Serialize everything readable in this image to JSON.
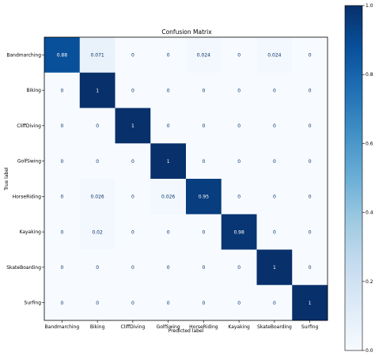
{
  "chart_data": {
    "type": "heatmap",
    "title": "Confusion Matrix",
    "xlabel": "Predicted label",
    "ylabel": "True label",
    "x_categories": [
      "Bandmarching",
      "Biking",
      "CliffDiving",
      "GolfSwing",
      "HorseRiding",
      "Kayaking",
      "SkateBoarding",
      "Surfing"
    ],
    "y_categories": [
      "Bandmarching",
      "Biking",
      "CliffDiving",
      "GolfSwing",
      "HorseRiding",
      "Kayaking",
      "SkateBoarding",
      "Surfing"
    ],
    "values": [
      [
        0.88,
        0.071,
        0,
        0,
        0.024,
        0,
        0.024,
        0
      ],
      [
        0,
        1,
        0,
        0,
        0,
        0,
        0,
        0
      ],
      [
        0,
        0,
        1,
        0,
        0,
        0,
        0,
        0
      ],
      [
        0,
        0,
        0,
        1,
        0,
        0,
        0,
        0
      ],
      [
        0,
        0.026,
        0,
        0.026,
        0.95,
        0,
        0,
        0
      ],
      [
        0,
        0.02,
        0,
        0,
        0,
        0.98,
        0,
        0
      ],
      [
        0,
        0,
        0,
        0,
        0,
        0,
        1,
        0
      ],
      [
        0,
        0,
        0,
        0,
        0,
        0,
        0,
        1
      ]
    ],
    "cell_labels": [
      [
        "0.88",
        "0.071",
        "0",
        "0",
        "0.024",
        "0",
        "0.024",
        "0"
      ],
      [
        "0",
        "1",
        "0",
        "0",
        "0",
        "0",
        "0",
        "0"
      ],
      [
        "0",
        "0",
        "1",
        "0",
        "0",
        "0",
        "0",
        "0"
      ],
      [
        "0",
        "0",
        "0",
        "1",
        "0",
        "0",
        "0",
        "0"
      ],
      [
        "0",
        "0.026",
        "0",
        "0.026",
        "0.95",
        "0",
        "0",
        "0"
      ],
      [
        "0",
        "0.02",
        "0",
        "0",
        "0",
        "0.98",
        "0",
        "0"
      ],
      [
        "0",
        "0",
        "0",
        "0",
        "0",
        "0",
        "1",
        "0"
      ],
      [
        "0",
        "0",
        "0",
        "0",
        "0",
        "0",
        "0",
        "1"
      ]
    ],
    "colorbar": {
      "range": [
        0,
        1
      ],
      "ticks": [
        "0.0",
        "0.2",
        "0.4",
        "0.6",
        "0.8",
        "1.0"
      ],
      "colormap": [
        "#f7fbff",
        "#deebf7",
        "#c6dbef",
        "#9ecae1",
        "#6baed6",
        "#4292c6",
        "#2171b5",
        "#08519c",
        "#08306b"
      ]
    },
    "text_color_light": "#ffffff",
    "text_color_dark": "#08306b"
  }
}
